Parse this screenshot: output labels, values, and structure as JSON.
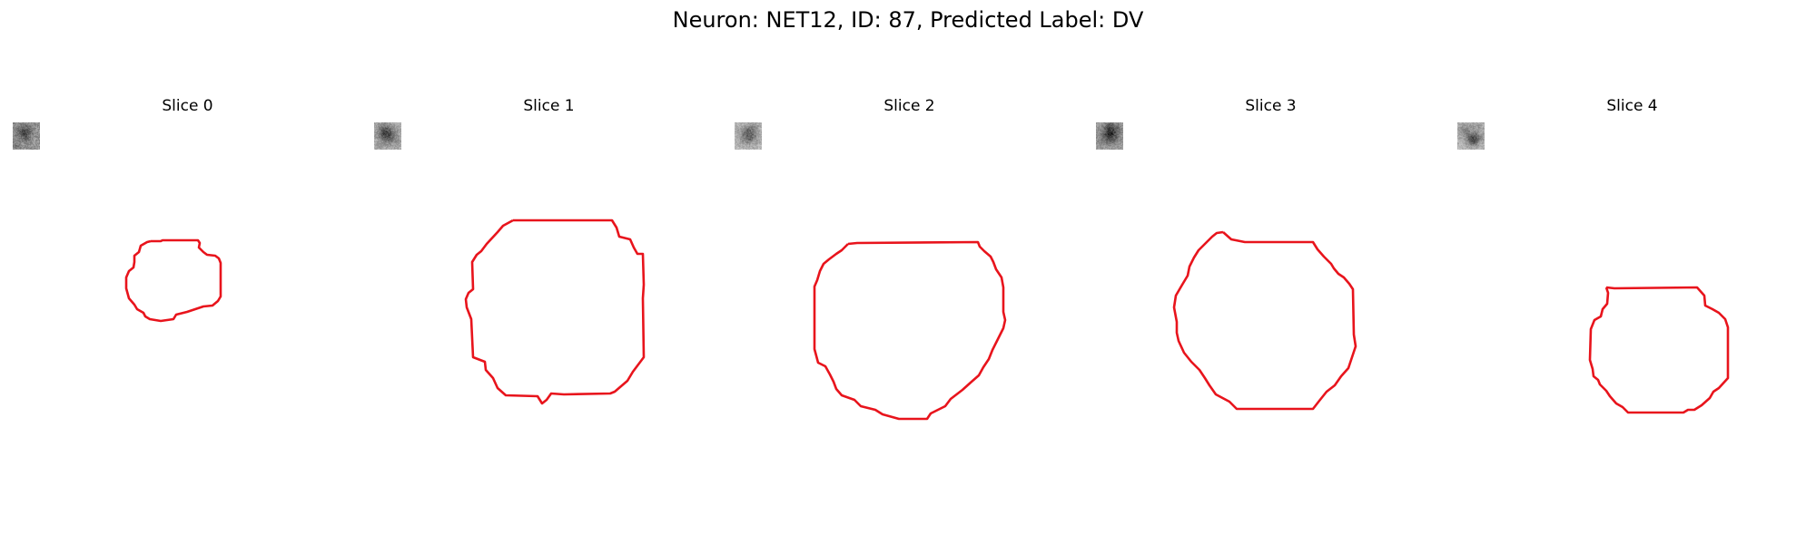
{
  "figure": {
    "title": "Neuron: NET12, ID: 87, Predicted Label: DV"
  },
  "panels": [
    {
      "title": "Slice 0"
    },
    {
      "title": "Slice 1"
    },
    {
      "title": "Slice 2"
    },
    {
      "title": "Slice 3"
    },
    {
      "title": "Slice 4"
    }
  ],
  "colors": {
    "contour": "#e8141c",
    "colormap": "gray"
  }
}
